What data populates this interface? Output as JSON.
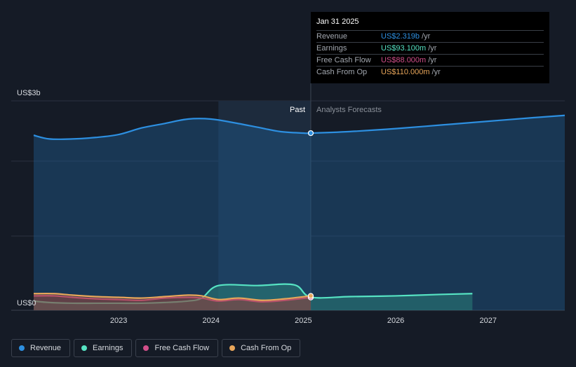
{
  "chart_data": {
    "type": "area",
    "y_axis": {
      "top_label": "US$3b",
      "bottom_label": "US$0",
      "ylim": [
        0,
        2.7
      ]
    },
    "x_axis": {
      "ticks": [
        "2023",
        "2024",
        "2025",
        "2026",
        "2027"
      ],
      "xlim": [
        2022.08,
        2027.83
      ]
    },
    "past_label": "Past",
    "forecast_label": "Analysts Forecasts",
    "divider_x": 2025.08,
    "highlight_start_x": 2024.08,
    "series": [
      {
        "name": "Revenue",
        "color": "#2d8fe0",
        "x": [
          2022.08,
          2022.25,
          2022.5,
          2022.75,
          2023.0,
          2023.25,
          2023.5,
          2023.75,
          2024.0,
          2024.25,
          2024.5,
          2024.75,
          2025.0,
          2025.08,
          2025.5,
          2026.0,
          2026.5,
          2027.0,
          2027.5,
          2027.83
        ],
        "values": [
          2.29,
          2.24,
          2.24,
          2.26,
          2.3,
          2.39,
          2.45,
          2.51,
          2.51,
          2.46,
          2.4,
          2.34,
          2.32,
          2.319,
          2.34,
          2.38,
          2.43,
          2.48,
          2.53,
          2.56
        ]
      },
      {
        "name": "Earnings",
        "color": "#56e3c3",
        "x": [
          2022.08,
          2022.25,
          2022.5,
          2022.75,
          2023.0,
          2023.25,
          2023.5,
          2023.75,
          2023.9,
          2024.08,
          2024.5,
          2024.9,
          2025.08,
          2025.5,
          2026.0,
          2026.5,
          2026.83
        ],
        "values": [
          0.04,
          0.02,
          0.01,
          0.01,
          0.01,
          0.01,
          0.02,
          0.04,
          0.08,
          0.25,
          0.25,
          0.26,
          0.0931,
          0.1,
          0.11,
          0.13,
          0.14
        ]
      },
      {
        "name": "Free Cash Flow",
        "color": "#d24f8a",
        "x": [
          2022.08,
          2022.3,
          2022.5,
          2022.75,
          2023.0,
          2023.25,
          2023.5,
          2023.75,
          2023.9,
          2024.08,
          2024.3,
          2024.55,
          2024.8,
          2025.08
        ],
        "values": [
          0.11,
          0.11,
          0.09,
          0.07,
          0.06,
          0.05,
          0.08,
          0.09,
          0.08,
          0.04,
          0.06,
          0.03,
          0.05,
          0.088
        ]
      },
      {
        "name": "Cash From Op",
        "color": "#e9a65a",
        "x": [
          2022.08,
          2022.3,
          2022.5,
          2022.75,
          2023.0,
          2023.25,
          2023.5,
          2023.75,
          2023.9,
          2024.08,
          2024.3,
          2024.55,
          2024.8,
          2025.08
        ],
        "values": [
          0.14,
          0.14,
          0.12,
          0.1,
          0.09,
          0.08,
          0.1,
          0.12,
          0.11,
          0.06,
          0.08,
          0.05,
          0.07,
          0.11
        ]
      }
    ],
    "grid": true
  },
  "tooltip": {
    "date": "Jan 31 2025",
    "rows": [
      {
        "label": "Revenue",
        "value": "US$2.319b",
        "unit": "/yr",
        "color": "#2d8fe0"
      },
      {
        "label": "Earnings",
        "value": "US$93.100m",
        "unit": "/yr",
        "color": "#56e3c3"
      },
      {
        "label": "Free Cash Flow",
        "value": "US$88.000m",
        "unit": "/yr",
        "color": "#d24f8a"
      },
      {
        "label": "Cash From Op",
        "value": "US$110.000m",
        "unit": "/yr",
        "color": "#e9a65a"
      }
    ]
  },
  "legend": [
    {
      "label": "Revenue",
      "color": "#2d8fe0"
    },
    {
      "label": "Earnings",
      "color": "#56e3c3"
    },
    {
      "label": "Free Cash Flow",
      "color": "#d24f8a"
    },
    {
      "label": "Cash From Op",
      "color": "#e9a65a"
    }
  ]
}
